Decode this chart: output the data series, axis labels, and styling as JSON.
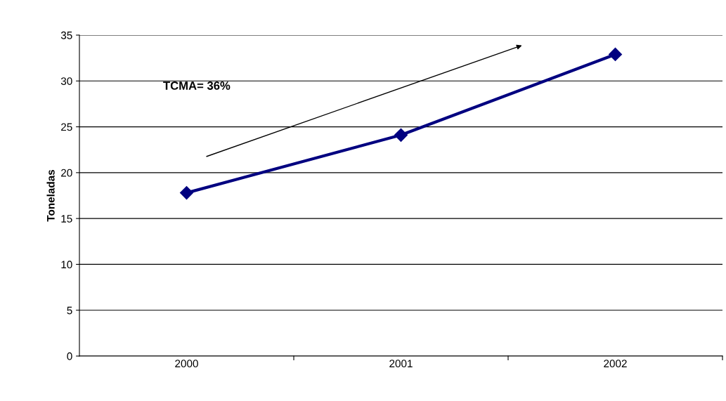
{
  "chart_data": {
    "type": "line",
    "ylabel": "Toneladas",
    "categories": [
      "2000",
      "2001",
      "2002"
    ],
    "series": [
      {
        "color": "#000080",
        "values": [
          17.8,
          24.1,
          32.9
        ]
      }
    ],
    "ylim": [
      0,
      35
    ],
    "yticks": [
      0,
      5,
      10,
      15,
      20,
      25,
      30,
      35
    ],
    "grid": "y",
    "marker": "diamond",
    "line_style": "solid",
    "annotations": [
      "TCMA= 36%"
    ]
  }
}
